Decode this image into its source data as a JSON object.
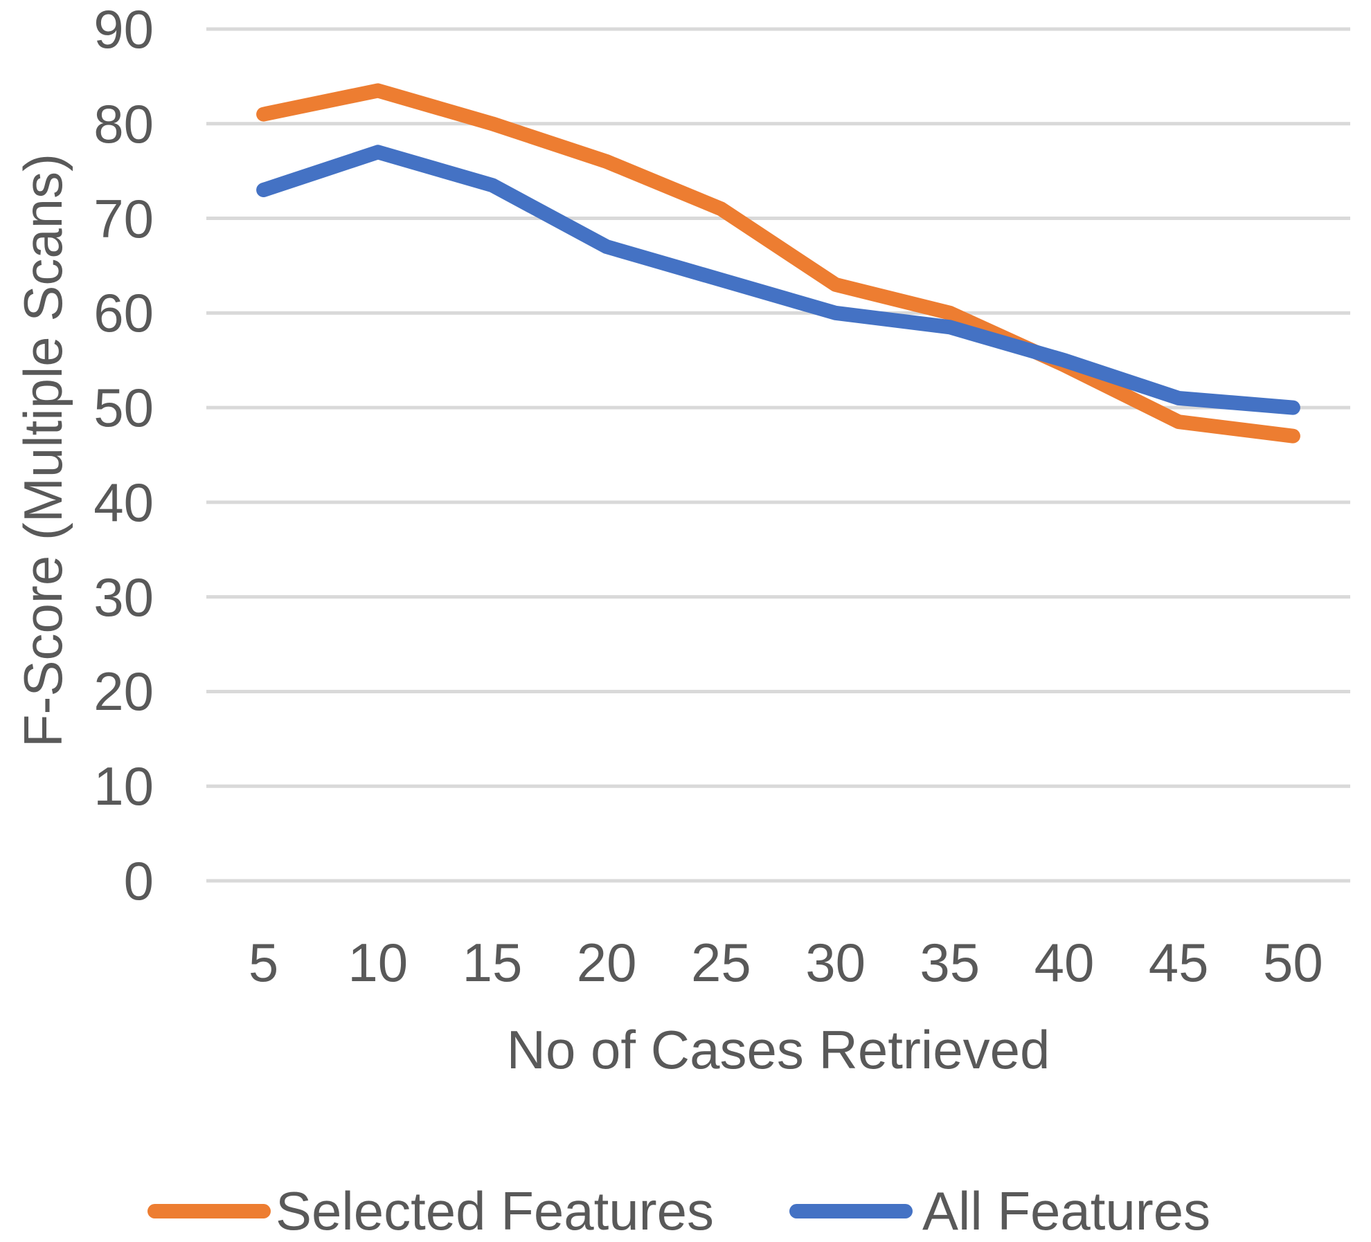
{
  "chart_data": {
    "type": "line",
    "title": "",
    "xlabel": "No of Cases Retrieved",
    "ylabel": "F-Score (Multiple Scans)",
    "categories": [
      5,
      10,
      15,
      20,
      25,
      30,
      35,
      40,
      45,
      50
    ],
    "series": [
      {
        "name": "Selected Features",
        "color": "#ED7D31",
        "values": [
          81,
          83.5,
          80,
          76,
          71,
          63,
          60,
          54.5,
          48.5,
          47
        ]
      },
      {
        "name": "All Features",
        "color": "#4472C4",
        "values": [
          73,
          77,
          73.5,
          67,
          63.5,
          60,
          58.5,
          55,
          51,
          50
        ]
      }
    ],
    "ylim": [
      0,
      90
    ],
    "ytick_step": 10,
    "y_tick_labels": [
      90,
      80,
      70,
      60,
      50,
      40,
      30,
      20,
      10,
      0
    ],
    "grid": "horizontal",
    "gridline_color": "#D9D9D9",
    "axis_text_color": "#595959",
    "legend_position": "bottom"
  }
}
